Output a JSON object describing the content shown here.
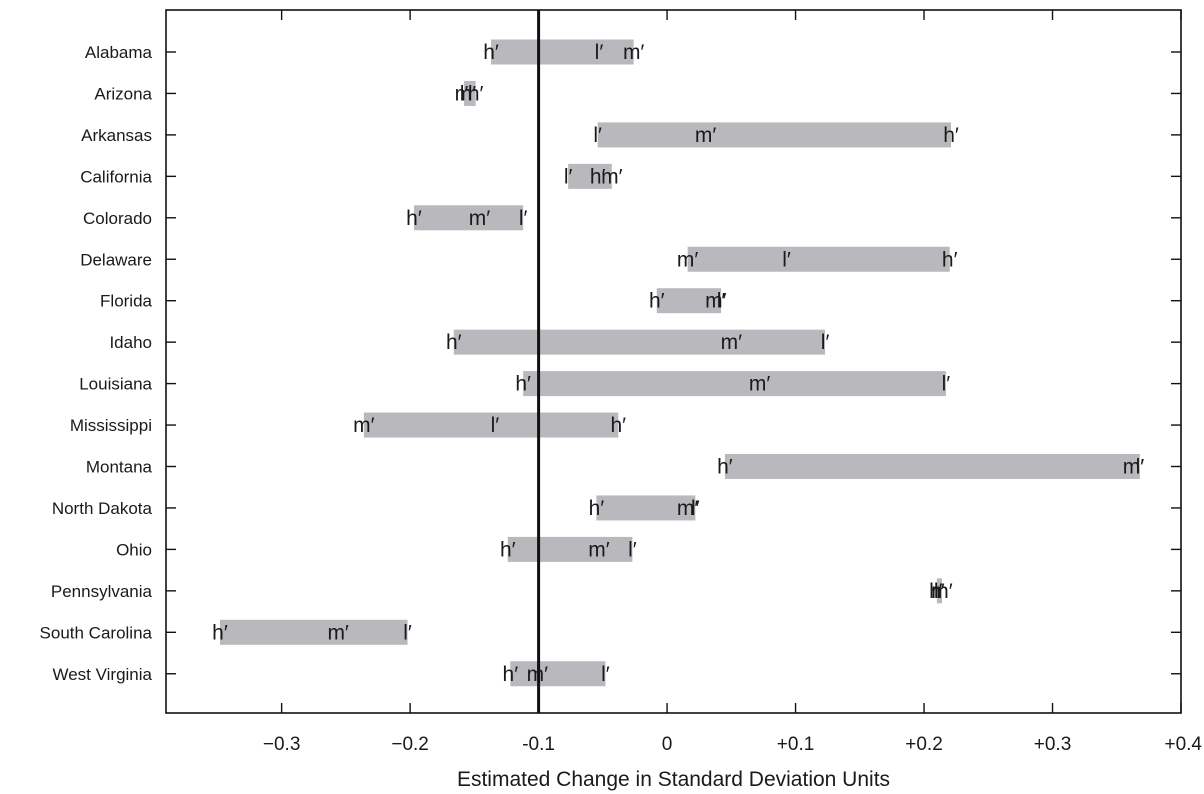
{
  "chart_data": {
    "type": "range",
    "xlabel": "Estimated Change in Standard Deviation Units",
    "xlim": [
      -0.39,
      0.4
    ],
    "xticks": [
      -0.3,
      -0.2,
      -0.1,
      0,
      0.1,
      0.2,
      0.3,
      0.4
    ],
    "xtick_labels": [
      "−0.3",
      "−0.2",
      "-0.1",
      "0",
      "+0.1",
      "+0.2",
      "+0.3",
      "+0.4"
    ],
    "reference_line": -0.1,
    "marker_symbols": {
      "l": "l′",
      "m": "m′",
      "h": "h′"
    },
    "colors": {
      "bar": "#b9b9bd",
      "reference_line": "#111111",
      "frame": "#111111"
    },
    "categories": [
      "Alabama",
      "Arizona",
      "Arkansas",
      "California",
      "Colorado",
      "Delaware",
      "Florida",
      "Idaho",
      "Louisiana",
      "Mississippi",
      "Montana",
      "North Dakota",
      "Ohio",
      "Pennsylvania",
      "South Carolina",
      "West Virginia"
    ],
    "series": [
      {
        "name": "l",
        "values": [
          -0.053,
          -0.158,
          -0.054,
          -0.077,
          -0.112,
          0.093,
          0.042,
          0.123,
          0.217,
          -0.134,
          0.368,
          0.022,
          -0.027,
          0.211,
          -0.202,
          -0.048
        ]
      },
      {
        "name": "m",
        "values": [
          -0.026,
          -0.157,
          0.03,
          -0.043,
          -0.146,
          0.016,
          0.038,
          0.05,
          0.072,
          -0.236,
          0.363,
          0.016,
          -0.053,
          0.214,
          -0.256,
          -0.101
        ]
      },
      {
        "name": "h",
        "values": [
          -0.137,
          -0.149,
          0.221,
          -0.054,
          -0.197,
          0.22,
          -0.008,
          -0.166,
          -0.112,
          -0.038,
          0.045,
          -0.055,
          -0.124,
          0.21,
          -0.348,
          -0.122
        ]
      }
    ]
  }
}
